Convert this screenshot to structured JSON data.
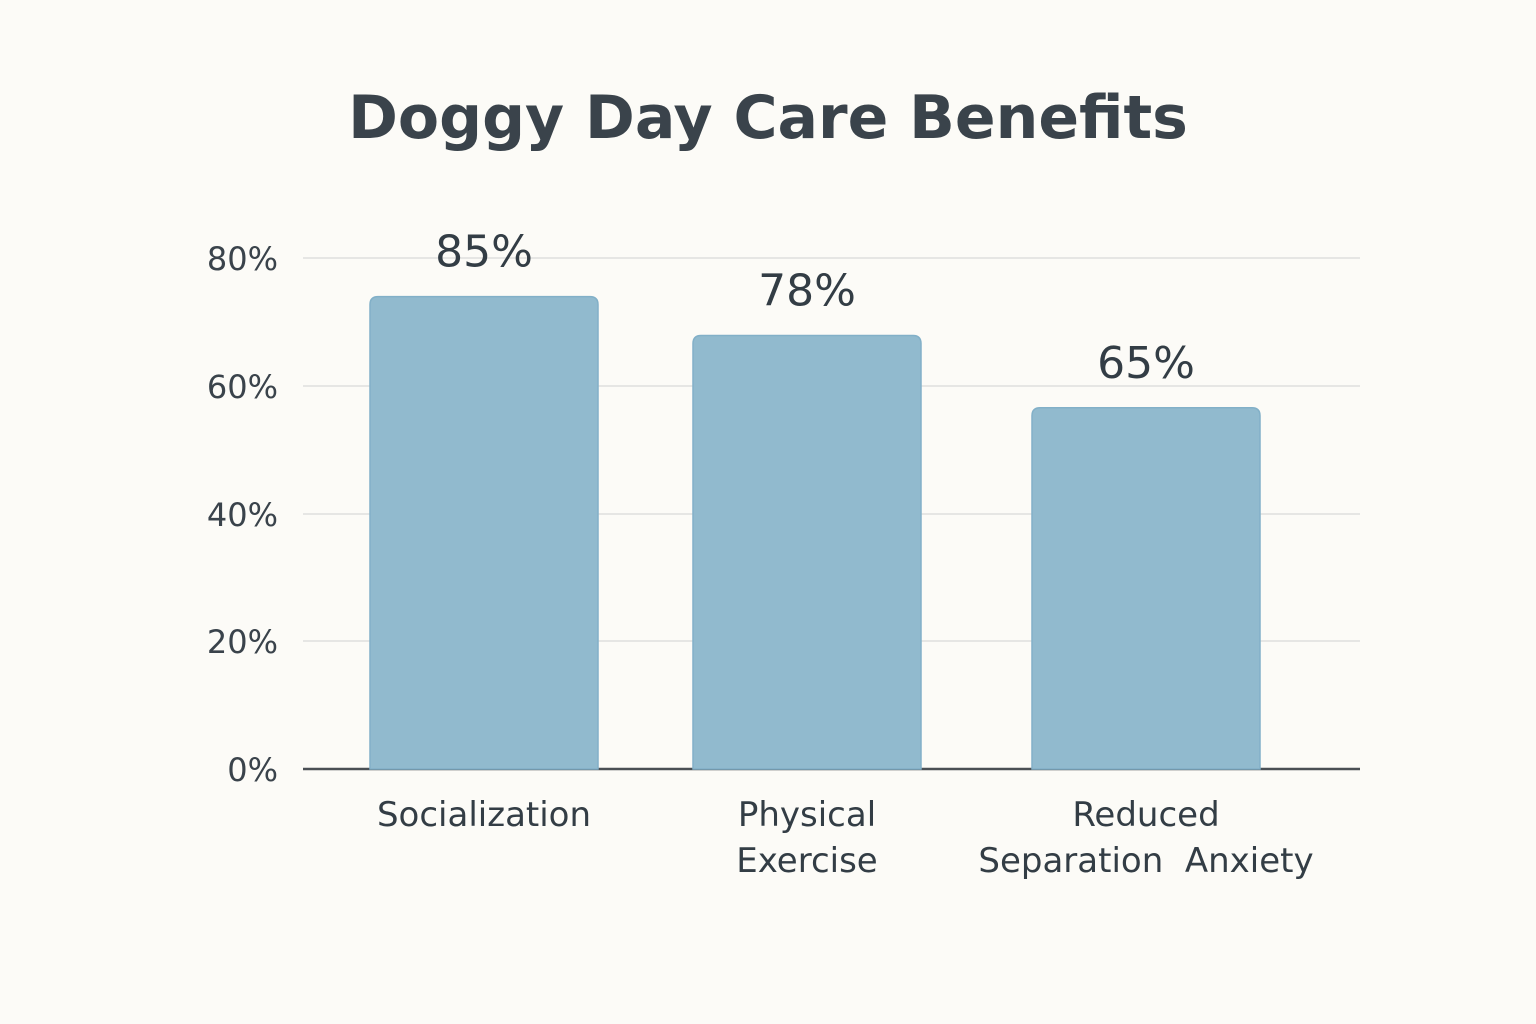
{
  "chart_data": {
    "type": "bar",
    "title": "Doggy Day Care Benefits",
    "xlabel": "",
    "ylabel": "",
    "categories": [
      "Socialization",
      "Physical Exercise",
      "Reduced Separation  Anxiety"
    ],
    "category_lines": [
      [
        "Socialization"
      ],
      [
        "Physical",
        "Exercise"
      ],
      [
        "Reduced",
        "Separation  Anxiety"
      ]
    ],
    "values": [
      85,
      78,
      65
    ],
    "value_labels": [
      "85%",
      "78%",
      "65%"
    ],
    "yticks": [
      0,
      20,
      40,
      60,
      80
    ],
    "ytick_labels": [
      "0%",
      "20%",
      "40%",
      "60%",
      "80%"
    ],
    "grid": true,
    "legend": "none",
    "bar_color": "#91bace"
  }
}
